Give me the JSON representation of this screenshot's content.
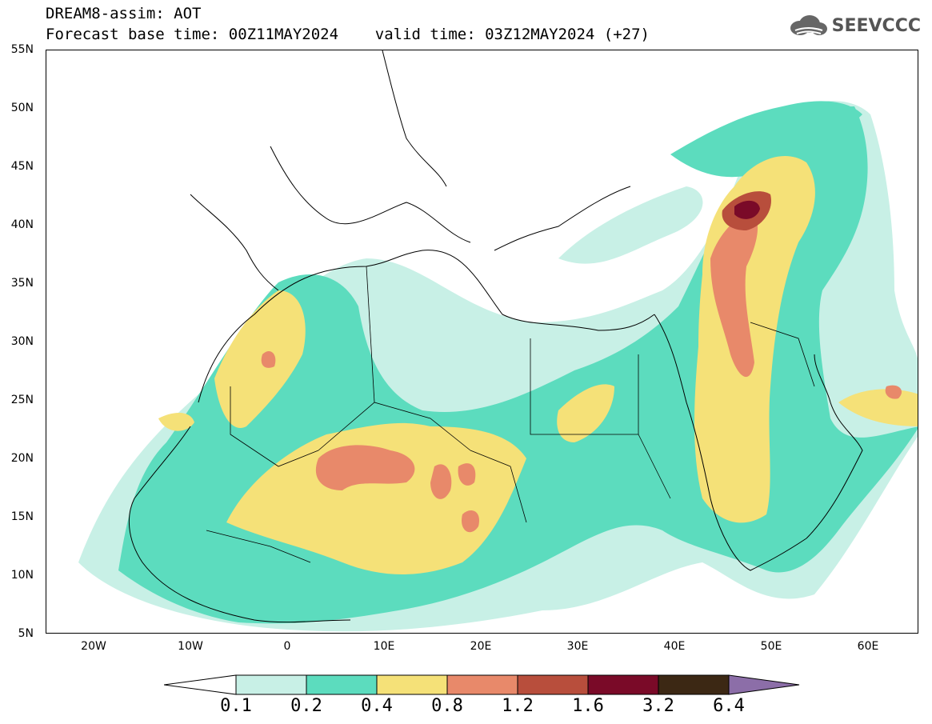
{
  "title": {
    "line1": "DREAM8-assim: AOT",
    "line2": "Forecast base time: 00Z11MAY2024    valid time: 03Z12MAY2024 (+27)"
  },
  "brand": {
    "name": "SEEVCCC",
    "icon": "cloud-logo-icon"
  },
  "map": {
    "variable": "AOT",
    "lat_range": [
      5,
      55
    ],
    "lon_range": [
      -25,
      65
    ],
    "lat_ticks": [
      "55N",
      "50N",
      "45N",
      "40N",
      "35N",
      "30N",
      "25N",
      "20N",
      "15N",
      "10N",
      "5N"
    ],
    "lon_ticks": [
      "20W",
      "10W",
      "0",
      "10E",
      "20E",
      "30E",
      "40E",
      "50E",
      "60E"
    ]
  },
  "colorbar": {
    "labels": [
      "0.1",
      "0.2",
      "0.4",
      "0.8",
      "1.2",
      "1.6",
      "3.2",
      "6.4"
    ],
    "colors": [
      "#ffffff",
      "#c8f0e6",
      "#5cdcbe",
      "#f5e178",
      "#e8896a",
      "#b84e3c",
      "#7a0a28",
      "#3c2814",
      "#8c6ea8"
    ]
  }
}
